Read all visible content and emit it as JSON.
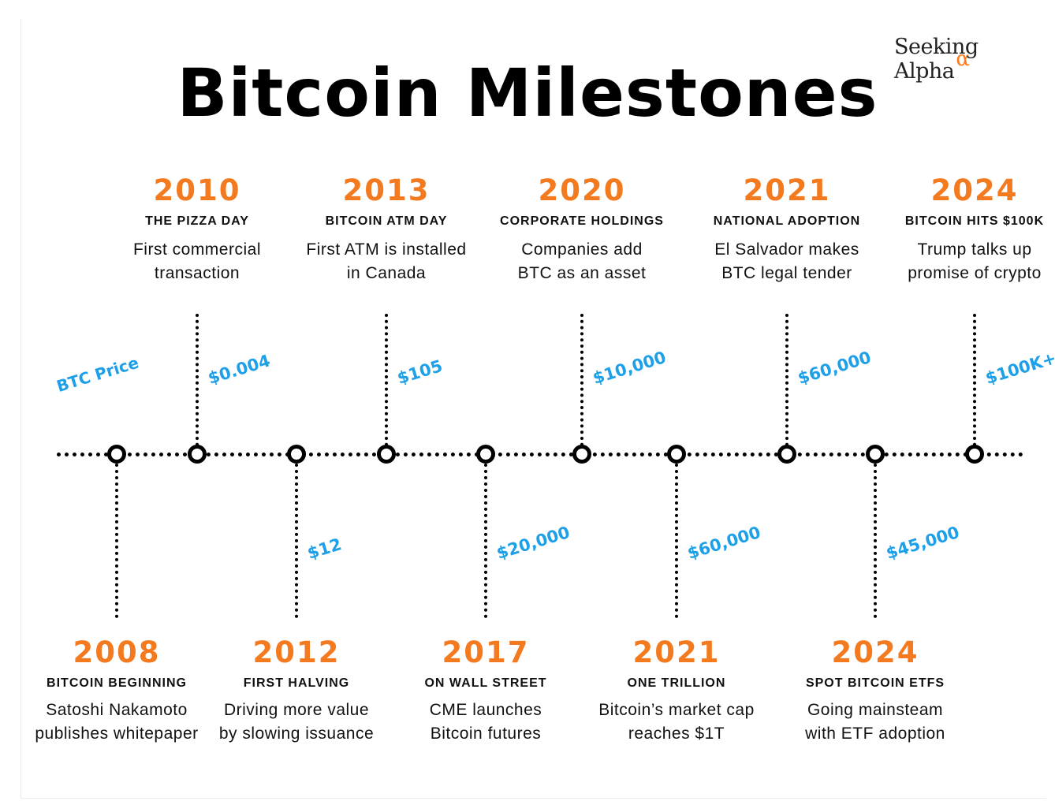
{
  "header": {
    "title": "Bitcoin Milestones",
    "brand_name": "Seeking Alpha",
    "brand_symbol": "α",
    "brand_accent_color": "#f47a20"
  },
  "axis_label": "BTC Price",
  "colors": {
    "year": "#f47a20",
    "price": "#1ea0e8",
    "line": "#000000"
  },
  "milestones_top": [
    {
      "year": "2010",
      "label": "THE PIZZA DAY",
      "desc": [
        "First commercial",
        "transaction"
      ],
      "price": "$0.004"
    },
    {
      "year": "2013",
      "label": "BITCOIN ATM DAY",
      "desc": [
        "First ATM is installed",
        "in Canada"
      ],
      "price": "$105"
    },
    {
      "year": "2020",
      "label": "CORPORATE HOLDINGS",
      "desc": [
        "Companies add",
        "BTC as an asset"
      ],
      "price": "$10,000"
    },
    {
      "year": "2021",
      "label": "NATIONAL ADOPTION",
      "desc": [
        "El Salvador makes",
        "BTC legal tender"
      ],
      "price": "$60,000"
    },
    {
      "year": "2024",
      "label": "BITCOIN HITS $100K",
      "desc": [
        "Trump talks up",
        "promise of crypto"
      ],
      "price": "$100K+"
    }
  ],
  "milestones_bottom": [
    {
      "year": "2008",
      "label": "BITCOIN BEGINNING",
      "desc": [
        "Satoshi Nakamoto",
        "publishes whitepaper"
      ],
      "price": ""
    },
    {
      "year": "2012",
      "label": "FIRST HALVING",
      "desc": [
        "Driving more value",
        "by slowing issuance"
      ],
      "price": "$12"
    },
    {
      "year": "2017",
      "label": "ON WALL STREET",
      "desc": [
        "CME launches",
        "Bitcoin futures"
      ],
      "price": "$20,000"
    },
    {
      "year": "2021",
      "label": "ONE TRILLION",
      "desc": [
        "Bitcoin’s market cap",
        "reaches $1T"
      ],
      "price": "$60,000"
    },
    {
      "year": "2024",
      "label": "SPOT BITCOIN ETFS",
      "desc": [
        "Going mainsteam",
        "with ETF adoption"
      ],
      "price": "$45,000"
    }
  ]
}
